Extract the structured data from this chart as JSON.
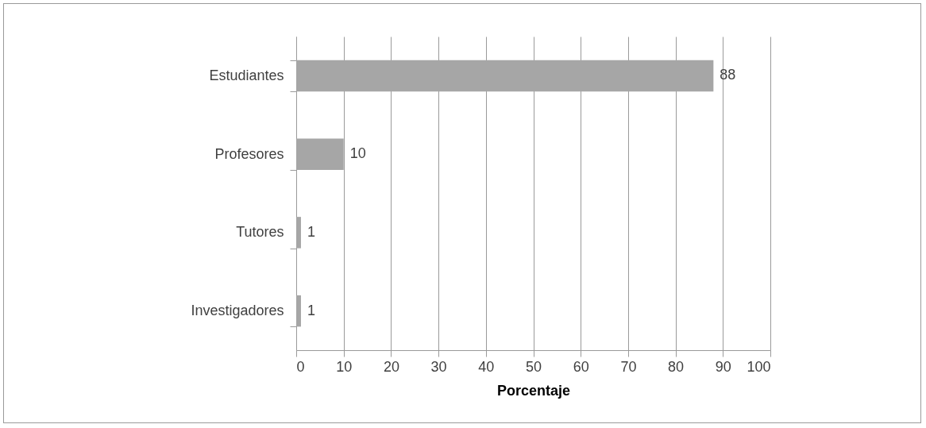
{
  "chart_data": {
    "type": "bar",
    "orientation": "horizontal",
    "categories": [
      "Estudiantes",
      "Profesores",
      "Tutores",
      "Investigadores"
    ],
    "values": [
      88,
      10,
      1,
      1
    ],
    "color": "#a6a6a6",
    "xlabel": "Porcentaje",
    "xlim": [
      0,
      100
    ],
    "xticks": [
      0,
      10,
      20,
      30,
      40,
      50,
      60,
      70,
      80,
      90,
      100
    ],
    "grid": "x",
    "data_labels": true
  }
}
